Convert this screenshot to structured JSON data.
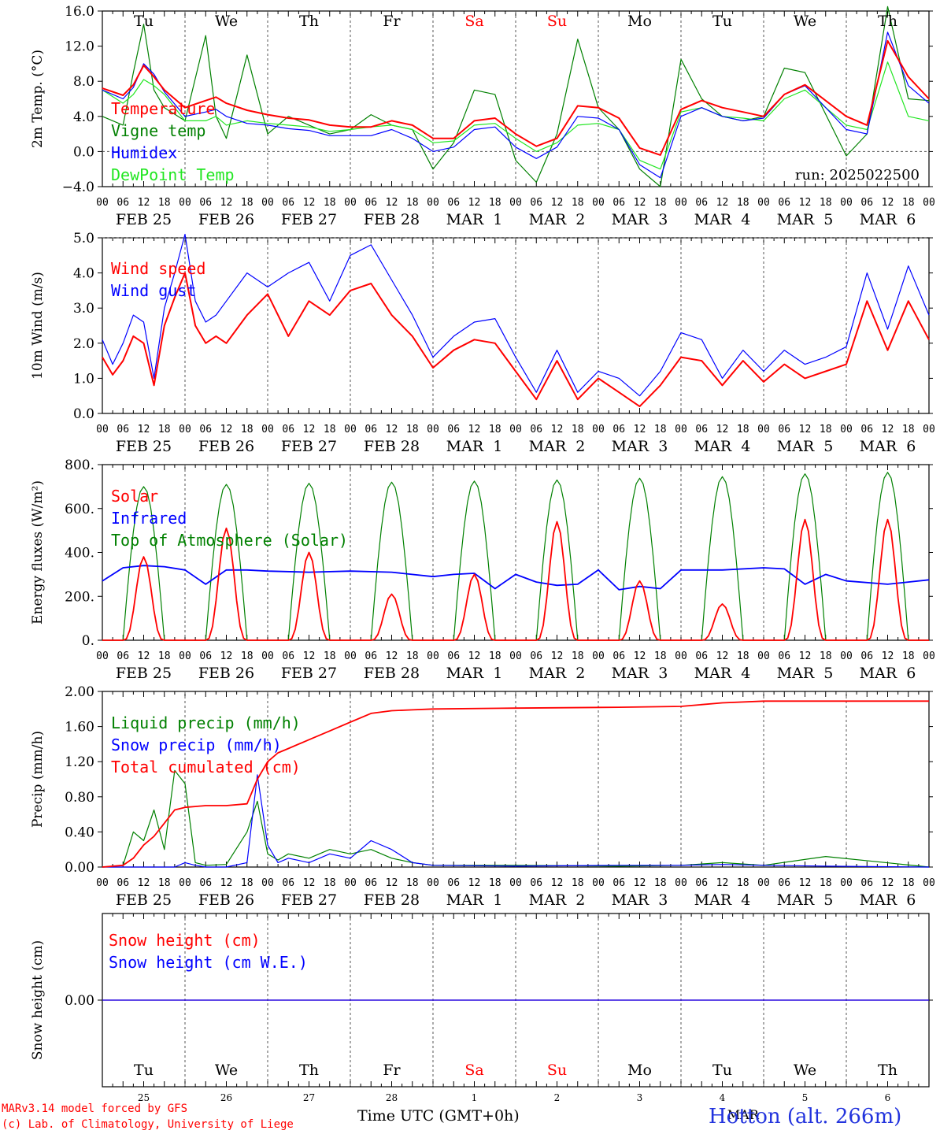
{
  "colors": {
    "red": "#ff0000",
    "green": "#008000",
    "blue": "#0000ff",
    "lightgreen": "#22e622",
    "grid": "#555555",
    "axis": "#000000"
  },
  "day_abbr": [
    "Tu",
    "We",
    "Th",
    "Fr",
    "Sa",
    "Su",
    "Mo",
    "Tu",
    "We",
    "Th"
  ],
  "weekend_day_indices": [
    4,
    5
  ],
  "date_labels": [
    "FEB 25",
    "FEB 26",
    "FEB 27",
    "FEB 28",
    "MAR  1",
    "MAR  2",
    "MAR  3",
    "MAR  4",
    "MAR  5",
    "MAR  6"
  ],
  "hour_labels": [
    "00",
    "06",
    "12",
    "18"
  ],
  "final_hour_label": "00",
  "bottom_day_numbers": [
    "25",
    "26",
    "27",
    "28",
    "1",
    "2",
    "3",
    "4",
    "5",
    "6"
  ],
  "bottom_month_label": "MAR",
  "xlabel": "Time UTC (GMT+0h)",
  "footer": {
    "model": "MARv3.14 model forced by GFS",
    "copyright": "(c) Lab. of Climatology, University of Liege",
    "station": "Hotton (alt. 266m)"
  },
  "chart_data": [
    {
      "id": "temperature",
      "type": "line",
      "ylabel": "2m Temp. (°C)",
      "ylim": [
        -4,
        16
      ],
      "yticks": [
        "−4.0",
        "0.0",
        "4.0",
        "8.0",
        "12.0",
        "16.0"
      ],
      "ytick_values": [
        -4,
        0,
        4,
        8,
        12,
        16
      ],
      "annotation": "run: 2025022500",
      "x_hours": [
        0,
        6,
        9,
        12,
        15,
        18,
        24,
        30,
        33,
        36,
        42,
        48,
        54,
        60,
        66,
        72,
        78,
        84,
        90,
        96,
        102,
        108,
        114,
        120,
        126,
        132,
        138,
        144,
        150,
        156,
        162,
        168,
        174,
        180,
        186,
        192,
        198,
        204,
        216,
        222,
        228,
        234,
        240
      ],
      "series": [
        {
          "name": "Temperature",
          "color": "#ff0000",
          "values": [
            7.2,
            6.4,
            7.6,
            9.8,
            8.5,
            7.0,
            5.0,
            5.8,
            6.2,
            5.5,
            4.7,
            4.2,
            3.8,
            3.6,
            3.0,
            2.8,
            2.8,
            3.5,
            3.0,
            1.5,
            1.5,
            3.5,
            3.8,
            2.0,
            0.6,
            1.5,
            5.2,
            5.0,
            3.8,
            0.4,
            -0.4,
            4.8,
            5.8,
            5.0,
            4.5,
            4.0,
            6.5,
            7.6,
            4.0,
            3.0,
            12.6,
            8.5,
            6.0
          ]
        },
        {
          "name": "Vigne temp",
          "color": "#008000",
          "values": [
            4.0,
            3.0,
            9.0,
            14.5,
            7.0,
            5.0,
            3.5,
            13.2,
            4.0,
            1.5,
            11.0,
            2.0,
            4.0,
            3.0,
            2.0,
            2.5,
            4.2,
            3.0,
            2.5,
            -2.0,
            1.0,
            7.0,
            6.5,
            -1.0,
            -3.5,
            2.0,
            12.8,
            5.0,
            2.5,
            -2.0,
            -4.0,
            10.5,
            6.0,
            4.0,
            3.5,
            4.0,
            9.5,
            9.0,
            -0.5,
            2.0,
            16.5,
            6.0,
            5.8
          ]
        },
        {
          "name": "Humidex",
          "color": "#0000ff",
          "values": [
            7.0,
            6.0,
            7.3,
            10.0,
            8.8,
            6.8,
            4.0,
            4.5,
            4.8,
            4.0,
            3.2,
            3.0,
            2.6,
            2.4,
            1.8,
            1.8,
            1.8,
            2.5,
            1.5,
            0.0,
            0.5,
            2.5,
            2.8,
            0.5,
            -0.8,
            0.5,
            4.0,
            3.8,
            2.5,
            -1.5,
            -3.0,
            4.0,
            5.0,
            4.0,
            3.5,
            3.8,
            6.5,
            7.5,
            2.5,
            2.0,
            13.6,
            7.5,
            5.5
          ]
        },
        {
          "name": "DewPoint Temp",
          "color": "#22e622",
          "values": [
            7.0,
            5.5,
            6.5,
            8.2,
            7.5,
            6.5,
            3.5,
            3.5,
            4.0,
            3.0,
            3.5,
            3.2,
            3.0,
            2.8,
            2.3,
            2.5,
            2.8,
            3.0,
            2.5,
            1.0,
            1.2,
            3.0,
            3.2,
            1.5,
            0.0,
            1.0,
            3.0,
            3.2,
            2.5,
            -1.0,
            -2.0,
            4.5,
            5.0,
            4.0,
            3.8,
            3.5,
            6.0,
            7.0,
            3.0,
            2.5,
            10.2,
            4.0,
            3.5
          ]
        }
      ]
    },
    {
      "id": "wind",
      "type": "line",
      "ylabel": "10m Wind (m/s)",
      "ylim": [
        0,
        5.0
      ],
      "yticks": [
        "0.0",
        "1.0",
        "2.0",
        "3.0",
        "4.0",
        "5.0"
      ],
      "ytick_values": [
        0,
        1,
        2,
        3,
        4,
        5
      ],
      "x_hours": [
        0,
        3,
        6,
        9,
        12,
        15,
        18,
        21,
        24,
        27,
        30,
        33,
        36,
        42,
        48,
        54,
        60,
        66,
        72,
        78,
        84,
        90,
        96,
        102,
        108,
        114,
        120,
        126,
        132,
        138,
        144,
        150,
        156,
        162,
        168,
        174,
        180,
        186,
        192,
        198,
        204,
        210,
        216,
        222,
        228,
        234,
        240
      ],
      "series": [
        {
          "name": "Wind speed",
          "color": "#ff0000",
          "values": [
            1.6,
            1.1,
            1.5,
            2.2,
            2.0,
            0.8,
            2.5,
            3.3,
            4.0,
            2.5,
            2.0,
            2.2,
            2.0,
            2.8,
            3.4,
            2.2,
            3.2,
            2.8,
            3.5,
            3.7,
            2.8,
            2.2,
            1.3,
            1.8,
            2.1,
            2.0,
            1.2,
            0.4,
            1.5,
            0.4,
            1.0,
            0.6,
            0.2,
            0.8,
            1.6,
            1.5,
            0.8,
            1.5,
            0.9,
            1.4,
            1.0,
            1.2,
            1.4,
            3.2,
            1.8,
            3.2,
            2.1
          ]
        },
        {
          "name": "Wind gust",
          "color": "#0000ff",
          "values": [
            2.1,
            1.4,
            2.0,
            2.8,
            2.6,
            1.0,
            3.0,
            4.0,
            5.1,
            3.2,
            2.6,
            2.8,
            3.2,
            4.0,
            3.6,
            4.0,
            4.3,
            3.2,
            4.5,
            4.8,
            3.8,
            2.8,
            1.6,
            2.2,
            2.6,
            2.7,
            1.6,
            0.6,
            1.8,
            0.6,
            1.2,
            1.0,
            0.5,
            1.2,
            2.3,
            2.1,
            1.0,
            1.8,
            1.2,
            1.8,
            1.4,
            1.6,
            1.9,
            4.0,
            2.4,
            4.2,
            2.8
          ]
        }
      ]
    },
    {
      "id": "energy",
      "type": "line",
      "ylabel": "Energy fluxes (W/m²)",
      "ylim": [
        0,
        800
      ],
      "yticks": [
        "0.",
        "200.",
        "400.",
        "600.",
        "800."
      ],
      "ytick_values": [
        0,
        200,
        400,
        600,
        800
      ],
      "toa_peaks": [
        700,
        710,
        715,
        720,
        725,
        730,
        738,
        745,
        758,
        765
      ],
      "solar_peaks": [
        380,
        510,
        400,
        210,
        300,
        540,
        270,
        165,
        550,
        550
      ],
      "infrared": {
        "x_hours": [
          0,
          6,
          12,
          18,
          24,
          30,
          36,
          42,
          48,
          60,
          72,
          84,
          96,
          102,
          108,
          114,
          120,
          126,
          132,
          138,
          144,
          150,
          156,
          162,
          168,
          180,
          192,
          198,
          204,
          210,
          216,
          228,
          240
        ],
        "values": [
          270,
          330,
          340,
          335,
          320,
          255,
          320,
          320,
          315,
          310,
          315,
          310,
          290,
          300,
          305,
          235,
          300,
          265,
          250,
          255,
          320,
          230,
          245,
          235,
          320,
          320,
          330,
          325,
          255,
          300,
          270,
          255,
          275
        ]
      },
      "series": [
        {
          "name": "Solar",
          "color": "#ff0000"
        },
        {
          "name": "Infrared",
          "color": "#0000ff"
        },
        {
          "name": "Top of Atmosphere (Solar)",
          "color": "#008000"
        }
      ]
    },
    {
      "id": "precip",
      "type": "line",
      "ylabel": "Precip (mm/h)",
      "ylim": [
        0,
        2.0
      ],
      "yticks": [
        "0.00",
        "0.40",
        "0.80",
        "1.20",
        "1.60",
        "2.00"
      ],
      "ytick_values": [
        0,
        0.4,
        0.8,
        1.2,
        1.6,
        2.0
      ],
      "x_hours": [
        0,
        6,
        9,
        12,
        15,
        18,
        21,
        24,
        27,
        30,
        36,
        42,
        45,
        48,
        51,
        54,
        60,
        66,
        72,
        78,
        84,
        90,
        96,
        120,
        150,
        168,
        180,
        192,
        210,
        240
      ],
      "series": [
        {
          "name": "Liquid precip (mm/h)",
          "color": "#008000",
          "values": [
            0,
            0.02,
            0.4,
            0.3,
            0.65,
            0.2,
            1.1,
            0.95,
            0.05,
            0.02,
            0.03,
            0.4,
            0.75,
            0.15,
            0.08,
            0.15,
            0.1,
            0.2,
            0.15,
            0.2,
            0.1,
            0.05,
            0.02,
            0.02,
            0.01,
            0.02,
            0.05,
            0.02,
            0.12,
            0
          ]
        },
        {
          "name": "Snow precip (mm/h)",
          "color": "#0000ff",
          "values": [
            0,
            0,
            0,
            0,
            0,
            0,
            0,
            0.05,
            0.02,
            0,
            0,
            0.05,
            1.05,
            0.25,
            0.05,
            0.1,
            0.05,
            0.15,
            0.1,
            0.3,
            0.2,
            0.05,
            0.02,
            0.01,
            0.02,
            0.02,
            0.03,
            0.02,
            0.01,
            0
          ]
        },
        {
          "name": "Total cumulated (cm)",
          "color": "#ff0000",
          "values": [
            0,
            0.02,
            0.1,
            0.25,
            0.35,
            0.5,
            0.65,
            0.68,
            0.69,
            0.7,
            0.7,
            0.72,
            1.0,
            1.2,
            1.3,
            1.35,
            1.45,
            1.55,
            1.65,
            1.75,
            1.78,
            1.79,
            1.8,
            1.81,
            1.82,
            1.83,
            1.87,
            1.89,
            1.89,
            1.89
          ]
        }
      ]
    },
    {
      "id": "snow",
      "type": "line",
      "ylabel": "Snow height (cm)",
      "ylim": [
        -1,
        1
      ],
      "yticks": [
        "0.00"
      ],
      "ytick_values": [
        0
      ],
      "x_hours": [
        0,
        240
      ],
      "series": [
        {
          "name": "Snow height (cm)",
          "color": "#ff0000",
          "values": [
            0,
            0
          ]
        },
        {
          "name": "Snow height (cm W.E.)",
          "color": "#0000ff",
          "values": [
            0,
            0
          ]
        }
      ]
    }
  ]
}
